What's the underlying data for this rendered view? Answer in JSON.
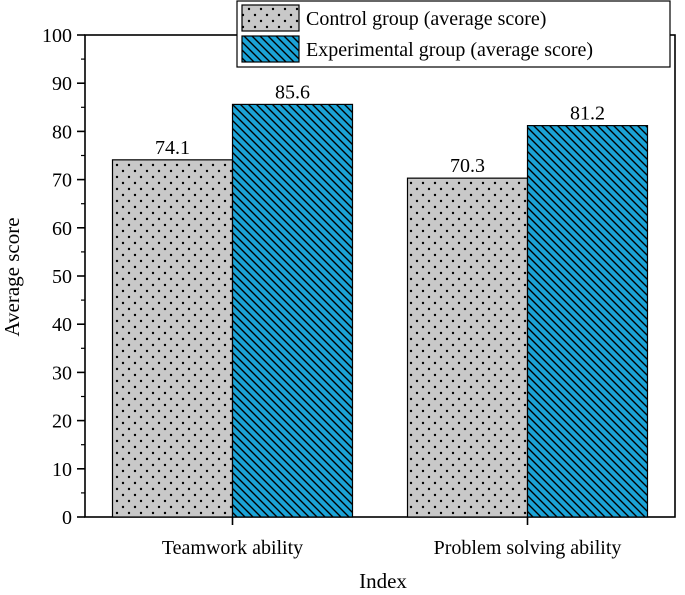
{
  "chart_data": {
    "type": "bar",
    "title": "",
    "xlabel": "Index",
    "ylabel": "Average score",
    "categories": [
      "Teamwork ability",
      "Problem solving ability"
    ],
    "series": [
      {
        "name": "Control group (average score)",
        "values": [
          74.1,
          70.3
        ],
        "value_labels": [
          "74.1",
          "70.3"
        ],
        "fill": "#c8c8c8",
        "pattern": "dots"
      },
      {
        "name": "Experimental group (average score)",
        "values": [
          85.6,
          81.2
        ],
        "value_labels": [
          "85.6",
          "81.2"
        ],
        "fill": "#1ba3d6",
        "pattern": "diagonal-hatch"
      }
    ],
    "ylim": [
      0,
      100
    ],
    "yticks": [
      0,
      10,
      20,
      30,
      40,
      50,
      60,
      70,
      80,
      90,
      100
    ],
    "grid": false,
    "legend_position": "top-right"
  }
}
